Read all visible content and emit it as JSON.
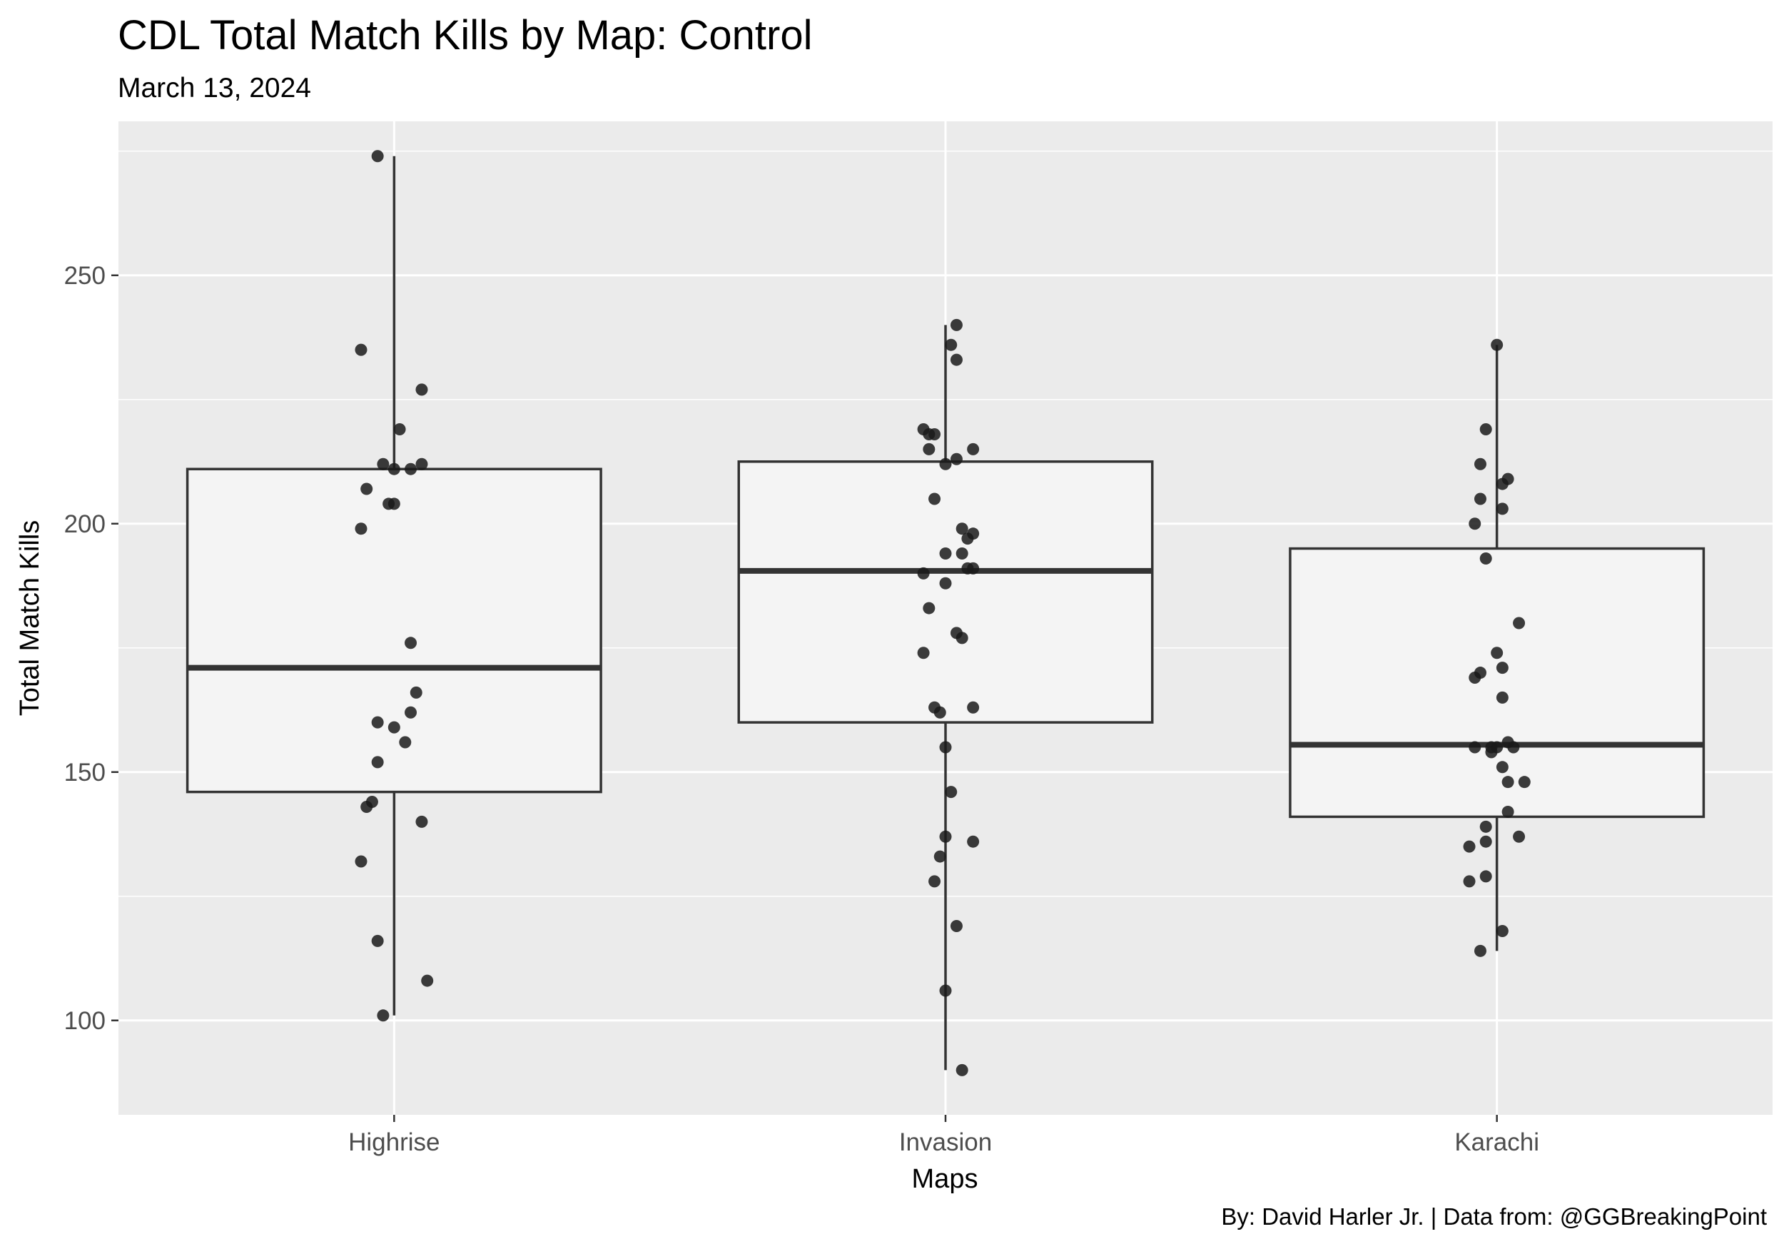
{
  "chart_data": {
    "type": "box",
    "title": "CDL Total Match Kills by Map: Control",
    "subtitle": "March 13, 2024",
    "caption": "By: David Harler Jr. | Data from: @GGBreakingPoint",
    "xlabel": "Maps",
    "ylabel": "Total Match Kills",
    "categories": [
      "Highrise",
      "Invasion",
      "Karachi"
    ],
    "ylim": [
      81,
      281
    ],
    "yticks": [
      100,
      150,
      200,
      250
    ],
    "grid": true,
    "legend": "none",
    "colors": {
      "panel": "#EBEBEB",
      "grid": "#FFFFFF",
      "box_fill": "#F4F4F4",
      "box_line": "#333333",
      "point": "#1A1A1A"
    },
    "boxes": [
      {
        "category": "Highrise",
        "min": 101,
        "q1": 146,
        "median": 171,
        "q3": 211,
        "max": 274
      },
      {
        "category": "Invasion",
        "min": 90,
        "q1": 160,
        "median": 190.5,
        "q3": 212.5,
        "max": 240
      },
      {
        "category": "Karachi",
        "min": 114,
        "q1": 141,
        "median": 155.5,
        "q3": 195,
        "max": 236
      }
    ],
    "points": [
      {
        "category": "Highrise",
        "values": [
          274,
          235,
          227,
          219,
          212,
          211,
          211,
          212,
          207,
          204,
          204,
          199,
          176,
          166,
          162,
          160,
          159,
          156,
          152,
          144,
          143,
          140,
          132,
          116,
          108,
          101
        ],
        "jitter": [
          -0.03,
          -0.06,
          0.05,
          0.01,
          -0.02,
          0.0,
          0.03,
          0.05,
          -0.05,
          -0.01,
          0.0,
          -0.06,
          0.03,
          0.04,
          0.03,
          -0.03,
          0.0,
          0.02,
          -0.03,
          -0.04,
          -0.05,
          0.05,
          -0.06,
          -0.03,
          0.06,
          -0.02
        ]
      },
      {
        "category": "Invasion",
        "values": [
          240,
          236,
          233,
          219,
          218,
          218,
          215,
          215,
          213,
          212,
          205,
          199,
          198,
          197,
          194,
          194,
          191,
          191,
          190,
          188,
          183,
          178,
          177,
          174,
          163,
          163,
          162,
          155,
          146,
          137,
          136,
          133,
          128,
          119,
          106,
          90
        ],
        "jitter": [
          0.02,
          0.01,
          0.02,
          -0.04,
          -0.03,
          -0.02,
          -0.03,
          0.05,
          0.02,
          0.0,
          -0.02,
          0.03,
          0.05,
          0.04,
          0.0,
          0.03,
          0.04,
          0.05,
          -0.04,
          0.0,
          -0.03,
          0.02,
          0.03,
          -0.04,
          -0.02,
          0.05,
          -0.01,
          0.0,
          0.01,
          0.0,
          0.05,
          -0.01,
          -0.02,
          0.02,
          0.0,
          0.03
        ]
      },
      {
        "category": "Karachi",
        "values": [
          236,
          219,
          212,
          209,
          208,
          205,
          203,
          200,
          193,
          180,
          174,
          171,
          170,
          169,
          165,
          156,
          155,
          155,
          155,
          155,
          154,
          151,
          148,
          148,
          142,
          139,
          137,
          136,
          135,
          129,
          128,
          118,
          114
        ],
        "jitter": [
          0.0,
          -0.02,
          -0.03,
          0.02,
          0.01,
          -0.03,
          0.01,
          -0.04,
          -0.02,
          0.04,
          0.0,
          0.01,
          -0.03,
          -0.04,
          0.01,
          0.02,
          0.0,
          -0.04,
          -0.01,
          0.03,
          -0.01,
          0.01,
          0.02,
          0.05,
          0.02,
          -0.02,
          0.04,
          -0.02,
          -0.05,
          -0.02,
          -0.05,
          0.01,
          -0.03
        ]
      }
    ]
  }
}
